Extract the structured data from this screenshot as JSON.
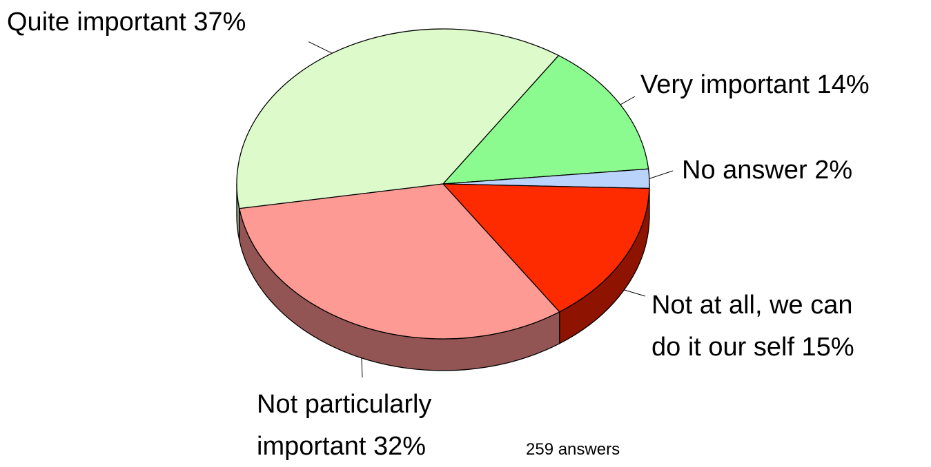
{
  "chart_data": {
    "type": "pie",
    "title": "",
    "note": "259 answers",
    "slices": [
      {
        "label": "Quite important 37%",
        "category": "Quite important",
        "value": 37,
        "color": "#DDFACB",
        "side_color": "#8FA08A"
      },
      {
        "label": "Very important 14%",
        "category": "Very important",
        "value": 14,
        "color": "#8CFB8F",
        "side_color": "#5A9A5C"
      },
      {
        "label": "No answer 2%",
        "category": "No answer",
        "value": 2,
        "color": "#BAD3FB",
        "side_color": "#7888A3"
      },
      {
        "label_lines": [
          "Not at all, we can",
          "do it  our self 15%"
        ],
        "category": "Not at all, we can do it our self",
        "value": 15,
        "color": "#FE2A00",
        "side_color": "#8E1300"
      },
      {
        "label_lines": [
          "Not particularly",
          "important 32%"
        ],
        "category": "Not particularly important",
        "value": 32,
        "color": "#FD9A94",
        "side_color": "#925553"
      }
    ]
  }
}
